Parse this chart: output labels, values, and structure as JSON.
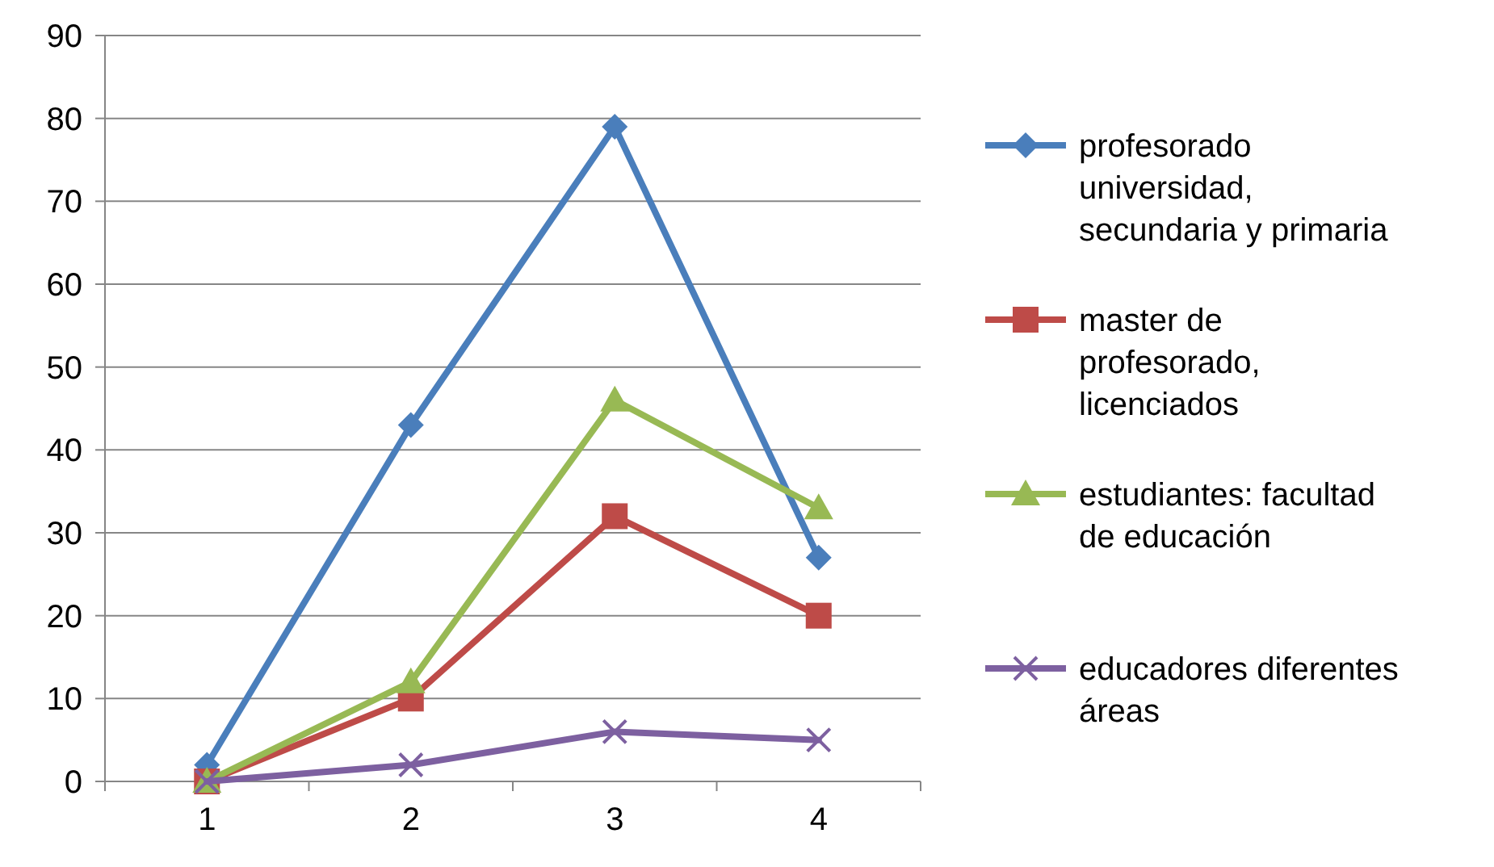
{
  "chart_data": {
    "type": "line",
    "categories": [
      "1",
      "2",
      "3",
      "4"
    ],
    "ylim": [
      0,
      90
    ],
    "yticks": [
      0,
      10,
      20,
      30,
      40,
      50,
      60,
      70,
      80,
      90
    ],
    "grid": "y",
    "legend": "right",
    "series": [
      {
        "name": "profesorado universidad, secundaria y primaria",
        "color": "#4a7ebb",
        "marker": "diamond",
        "values": [
          2,
          43,
          79,
          27
        ]
      },
      {
        "name": "master de profesorado, licenciados",
        "color": "#be4b48",
        "marker": "square",
        "values": [
          0,
          10,
          32,
          20
        ]
      },
      {
        "name": "estudiantes: facultad de educación",
        "color": "#98b954",
        "marker": "triangle",
        "values": [
          0,
          12,
          46,
          33
        ]
      },
      {
        "name": "educadores diferentes áreas",
        "color": "#7d60a0",
        "marker": "cross",
        "values": [
          0,
          2,
          6,
          5
        ]
      }
    ]
  }
}
